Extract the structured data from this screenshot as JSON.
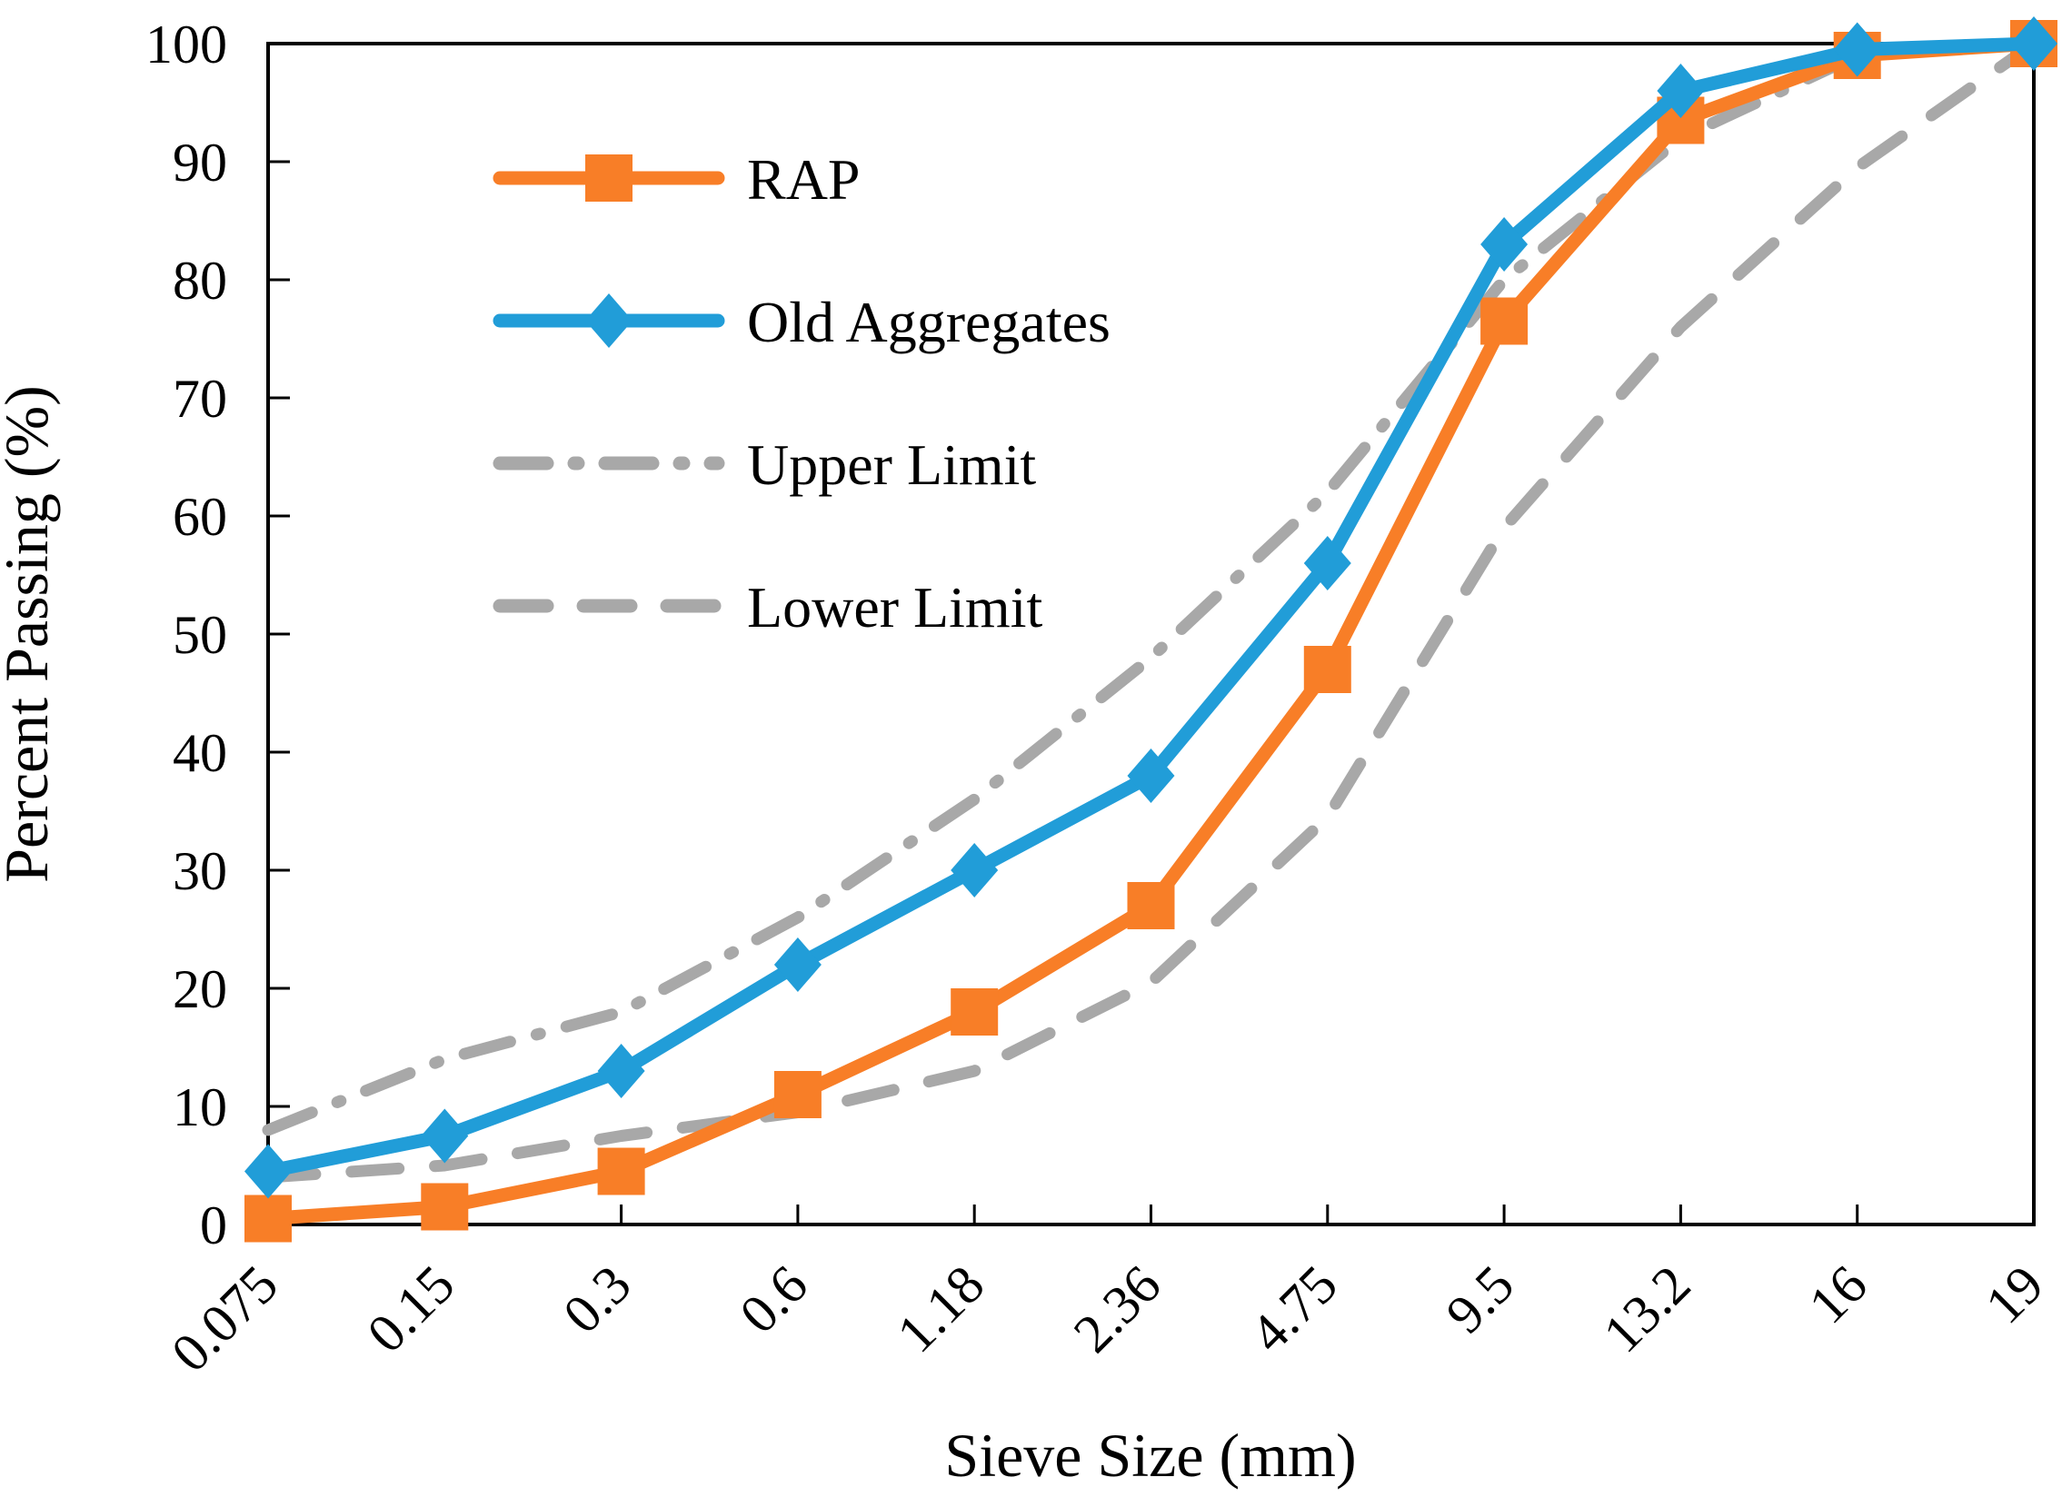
{
  "chart_data": {
    "type": "line",
    "title": "",
    "xlabel": "Sieve Size (mm)",
    "ylabel": "Percent Passing (%)",
    "categories": [
      "0.075",
      "0.15",
      "0.3",
      "0.6",
      "1.18",
      "2.36",
      "4.75",
      "9.5",
      "13.2",
      "16",
      "19"
    ],
    "ylim": [
      0,
      100
    ],
    "yticks": [
      0,
      10,
      20,
      30,
      40,
      50,
      60,
      70,
      80,
      90,
      100
    ],
    "grid": false,
    "legend_position": "upper-left-inside",
    "colors": {
      "rap": "#F87E27",
      "old_aggregates": "#219DD8",
      "limits": "#A8A8A8",
      "axis": "#000000"
    },
    "series": [
      {
        "name": "RAP",
        "color": "#F87E27",
        "marker": "square",
        "dash": "solid",
        "values": [
          0.5,
          1.5,
          4.5,
          11,
          18,
          27,
          47,
          76.5,
          93.5,
          99,
          100
        ]
      },
      {
        "name": "Old Aggregates",
        "color": "#219DD8",
        "marker": "diamond",
        "dash": "solid",
        "values": [
          4.5,
          7.5,
          13,
          22,
          30,
          38,
          56,
          83,
          96,
          99.5,
          100
        ]
      },
      {
        "name": "Upper Limit",
        "color": "#A8A8A8",
        "marker": "none",
        "dash": "dash-dot",
        "values": [
          8,
          14,
          18,
          26,
          36,
          48,
          62,
          80,
          92,
          99,
          100
        ]
      },
      {
        "name": "Lower Limit",
        "color": "#A8A8A8",
        "marker": "none",
        "dash": "dash",
        "values": [
          4,
          5,
          7.5,
          9.5,
          13,
          20.5,
          34.5,
          59,
          76,
          89.5,
          100
        ]
      }
    ]
  }
}
